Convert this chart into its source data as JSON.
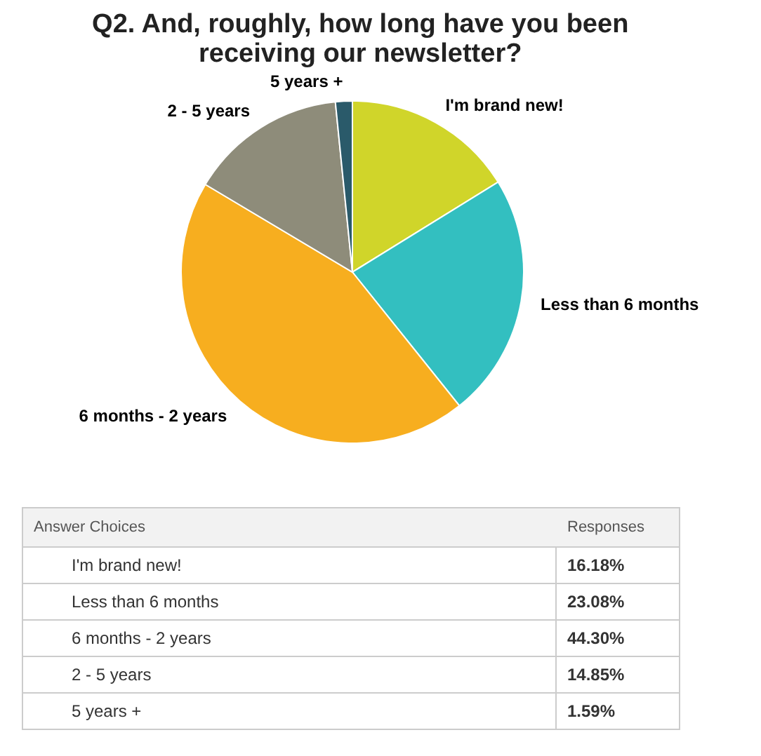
{
  "chart_data": {
    "type": "pie",
    "title": "Q2. And, roughly, how long have you been receiving our newsletter?",
    "categories": [
      "I'm brand new!",
      "Less than 6 months",
      "6 months - 2 years",
      "2 - 5 years",
      "5 years +"
    ],
    "values": [
      16.18,
      23.08,
      44.3,
      14.85,
      1.59
    ],
    "colors": [
      "#d0d52a",
      "#33bfc0",
      "#f7ae1f",
      "#8e8c7a",
      "#2a5a6a"
    ],
    "annotations": [
      "Answer Choices",
      "Responses",
      "16.18%",
      "23.08%",
      "44.30%",
      "14.85%",
      "1.59%"
    ],
    "legend": false
  }
}
